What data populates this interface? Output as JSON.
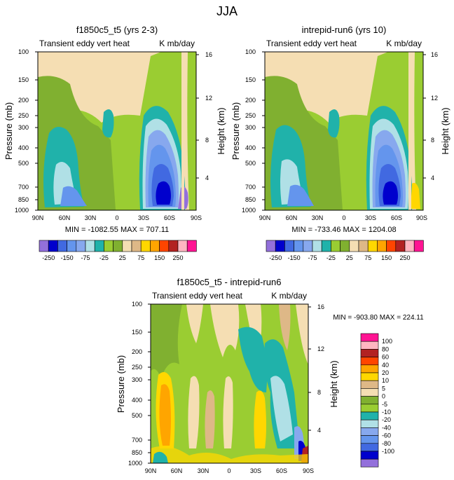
{
  "main_title": "JJA",
  "chart_data": [
    {
      "type": "heatmap",
      "id": "p1",
      "title": "f1850c5_t5 (yrs 2-3)",
      "left_string": "Transient eddy vert heat",
      "right_string": "K mb/day",
      "ylabel": "Pressure (mb)",
      "ylabel_right": "Height (km)",
      "x_ticks": [
        "90N",
        "60N",
        "30N",
        "0",
        "30S",
        "60S",
        "90S"
      ],
      "y_ticks": [
        "100",
        "150",
        "200",
        "250",
        "300",
        "400",
        "500",
        "700",
        "850",
        "1000"
      ],
      "y_ticks_right": [
        "16",
        "12",
        "8",
        "4"
      ],
      "ylim": [
        1000,
        100
      ],
      "stats": "MIN = -1082.55  MAX = 707.11",
      "min": -1082.55,
      "max": 707.11
    },
    {
      "type": "heatmap",
      "id": "p2",
      "title": "intrepid-run6 (yrs 10)",
      "left_string": "Transient eddy vert heat",
      "right_string": "K mb/day",
      "ylabel": "Pressure (mb)",
      "ylabel_right": "Height (km)",
      "x_ticks": [
        "90N",
        "60N",
        "30N",
        "0",
        "30S",
        "60S",
        "90S"
      ],
      "y_ticks": [
        "100",
        "150",
        "200",
        "250",
        "300",
        "400",
        "500",
        "700",
        "850",
        "1000"
      ],
      "y_ticks_right": [
        "16",
        "12",
        "8",
        "4"
      ],
      "ylim": [
        1000,
        100
      ],
      "stats": "MIN = -733.46  MAX = 1204.08",
      "min": -733.46,
      "max": 1204.08
    },
    {
      "type": "heatmap",
      "id": "p3",
      "title": "f1850c5_t5 - intrepid-run6",
      "left_string": "Transient eddy vert heat",
      "right_string": "K mb/day",
      "ylabel": "Pressure (mb)",
      "ylabel_right": "Height (km)",
      "x_ticks": [
        "90N",
        "60N",
        "30N",
        "0",
        "30S",
        "60S",
        "90S"
      ],
      "y_ticks": [
        "100",
        "150",
        "200",
        "250",
        "300",
        "400",
        "500",
        "700",
        "850",
        "1000"
      ],
      "y_ticks_right": [
        "16",
        "12",
        "8",
        "4"
      ],
      "ylim": [
        1000,
        100
      ],
      "stats": "MIN = -903.80  MAX = 224.11",
      "min": -903.8,
      "max": 224.11
    }
  ],
  "colorbar_top": {
    "colors": [
      "#9370db",
      "#0000cd",
      "#4169e1",
      "#6495ed",
      "#87a8ee",
      "#b0e0e6",
      "#20b2aa",
      "#9acd32",
      "#80b030",
      "#f5deb3",
      "#deb887",
      "#ffd700",
      "#ffa500",
      "#ff4500",
      "#b22222",
      "#ffb6c1",
      "#ff1493"
    ],
    "labels": [
      "-250",
      "-150",
      "-75",
      "-25",
      "25",
      "75",
      "150",
      "250"
    ]
  },
  "colorbar_diff": {
    "colors": [
      "#9370db",
      "#0000cd",
      "#4169e1",
      "#6495ed",
      "#87a8ee",
      "#b0e0e6",
      "#20b2aa",
      "#9acd32",
      "#80b030",
      "#f5deb3",
      "#deb887",
      "#ffd700",
      "#ffa500",
      "#ff4500",
      "#b22222",
      "#ffb6c1",
      "#ff1493"
    ],
    "labels": [
      "100",
      "80",
      "60",
      "40",
      "20",
      "10",
      "5",
      "0",
      "-5",
      "-10",
      "-20",
      "-40",
      "-60",
      "-80",
      "-100"
    ]
  }
}
